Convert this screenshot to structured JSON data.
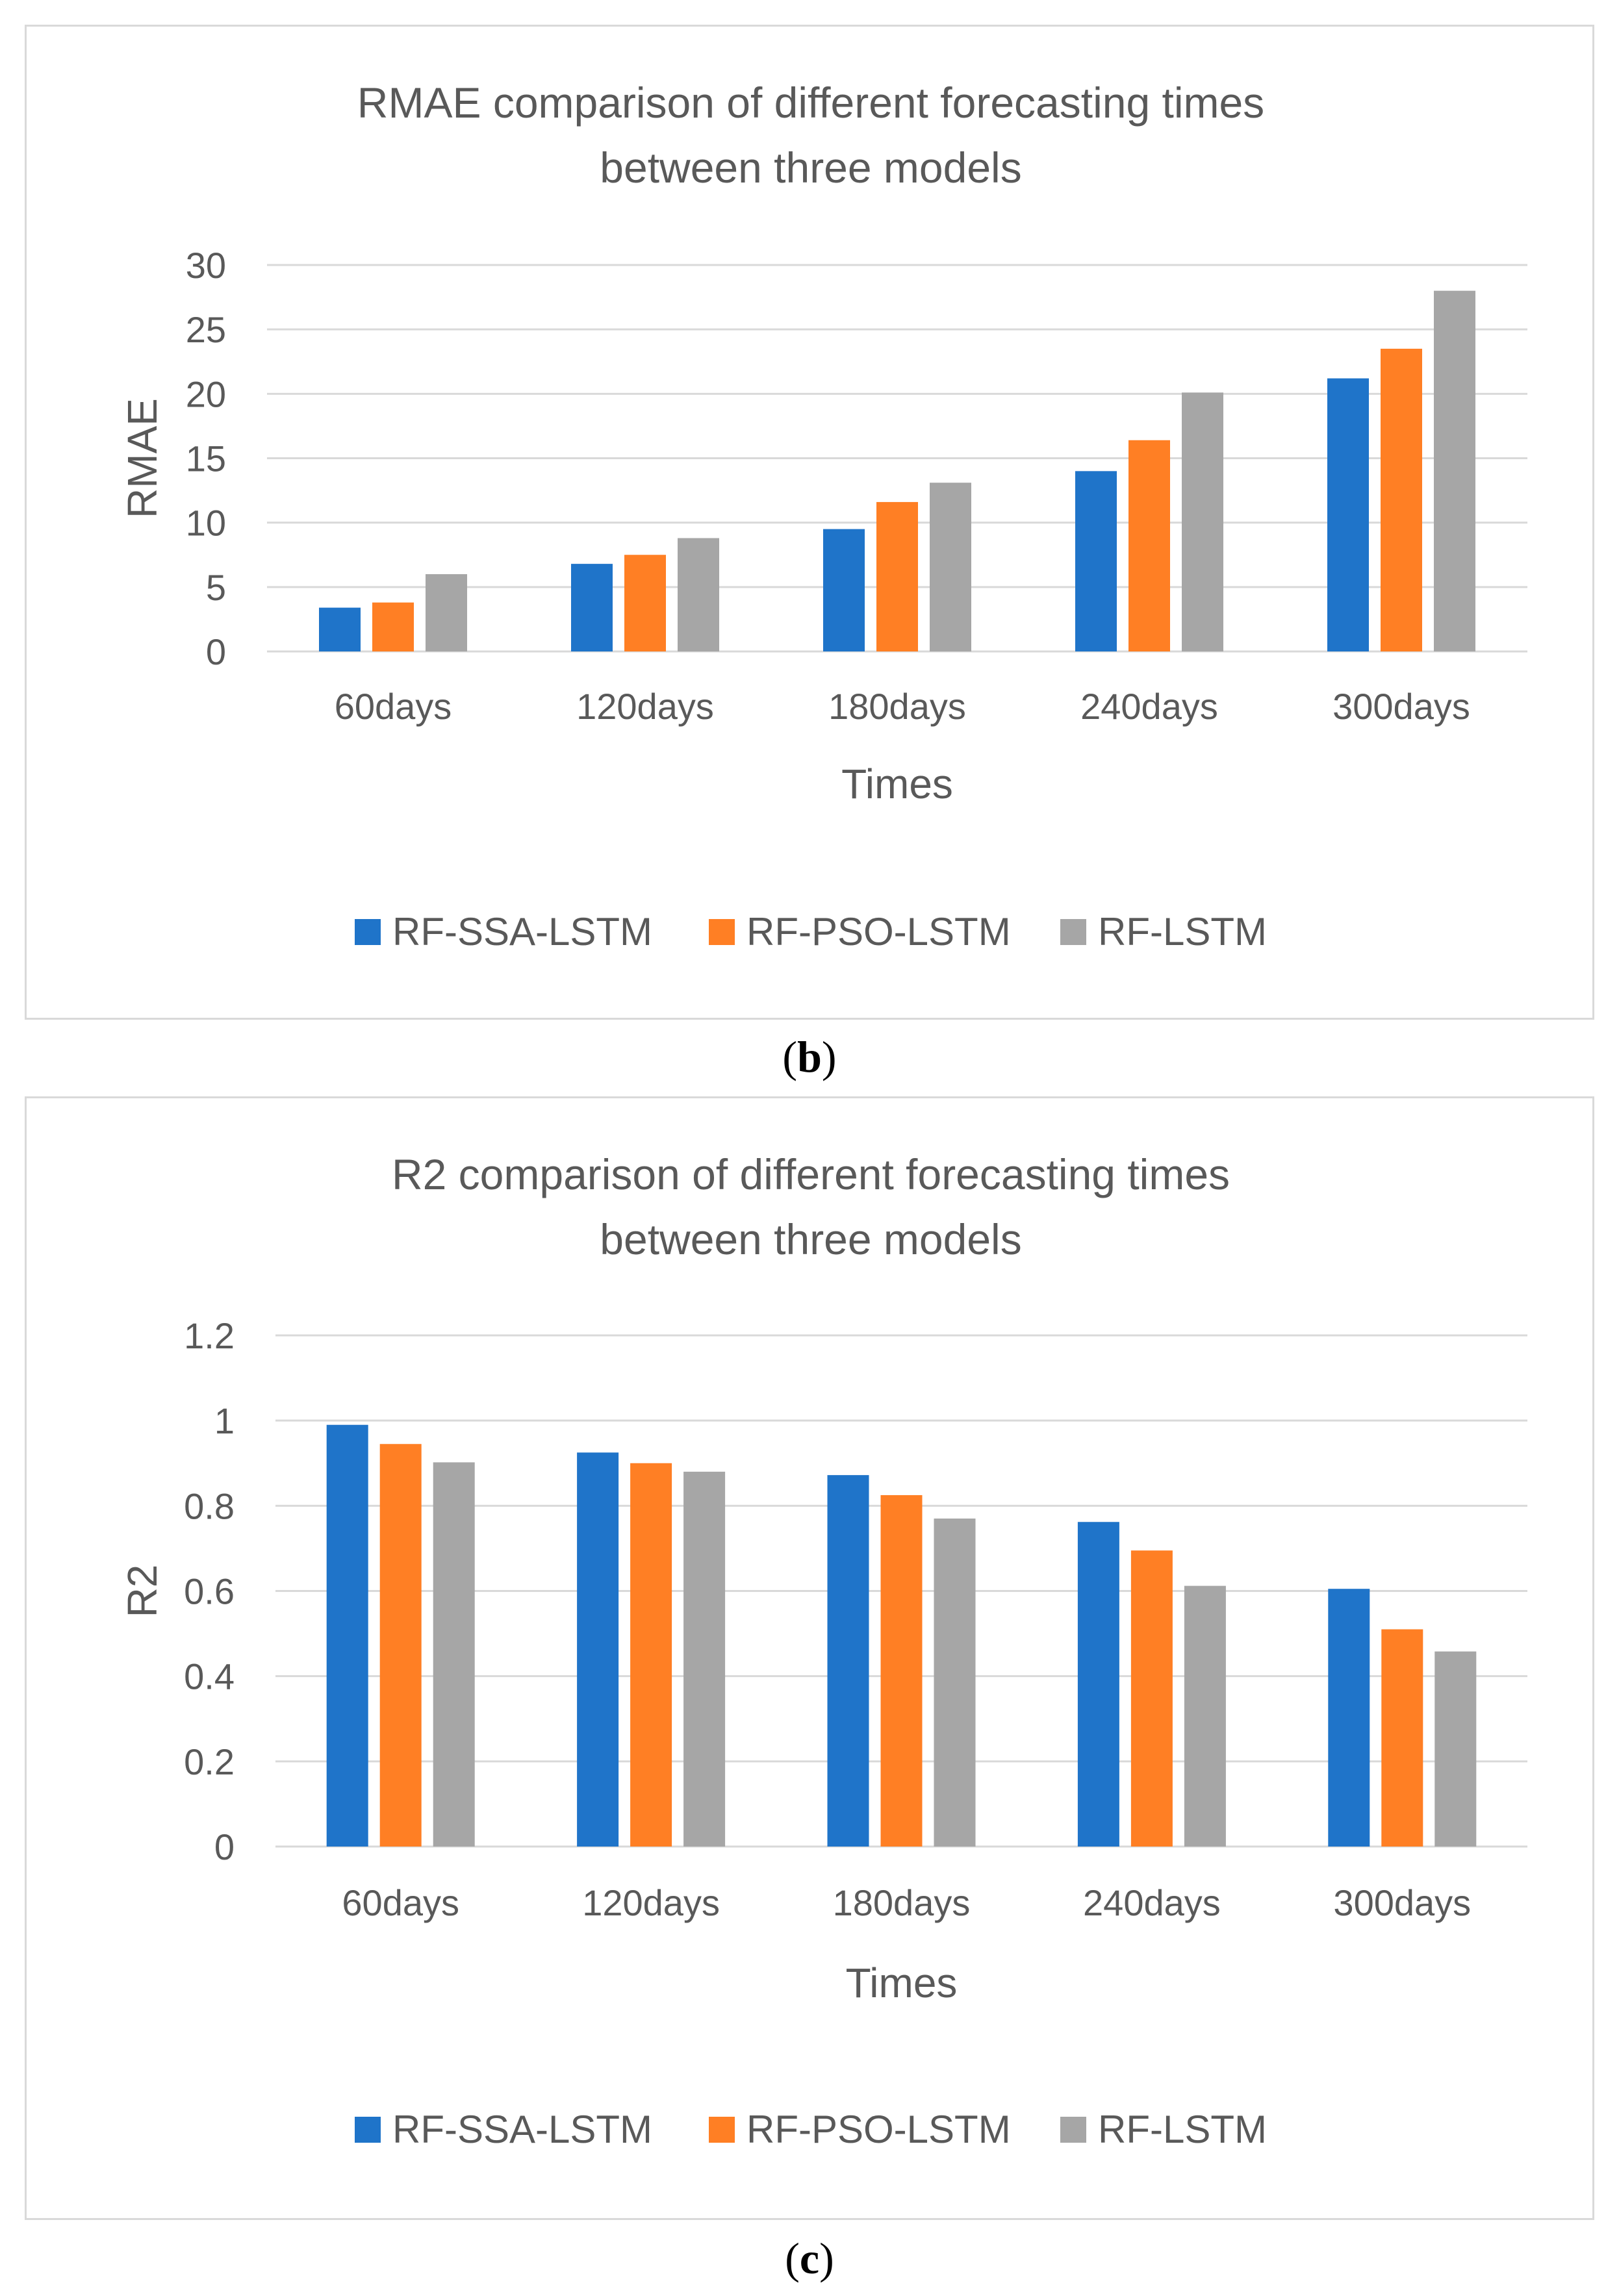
{
  "colors": {
    "series": [
      "#1f74c9",
      "#ff7f24",
      "#a6a6a6"
    ],
    "grid": "#d9d9d9",
    "text": "#595959"
  },
  "captions": {
    "b": "b",
    "c": "c"
  },
  "chart_data": [
    {
      "type": "bar",
      "title_lines": [
        "RMAE comparison of different forecasting times",
        "between three models"
      ],
      "xlabel": "Times",
      "ylabel": "RMAE",
      "categories": [
        "60days",
        "120days",
        "180days",
        "240days",
        "300days"
      ],
      "yticks": [
        "0",
        "5",
        "10",
        "15",
        "20",
        "25",
        "30"
      ],
      "ylim": [
        0,
        30
      ],
      "grid": true,
      "legend_position": "bottom",
      "series": [
        {
          "name": "RF-SSA-LSTM",
          "values": [
            3.4,
            6.8,
            9.5,
            14.0,
            21.2
          ]
        },
        {
          "name": "RF-PSO-LSTM",
          "values": [
            3.8,
            7.5,
            11.6,
            16.4,
            23.5
          ]
        },
        {
          "name": "RF-LSTM",
          "values": [
            6.0,
            8.8,
            13.1,
            20.1,
            28.0
          ]
        }
      ]
    },
    {
      "type": "bar",
      "title_lines": [
        "R2 comparison of different forecasting times",
        "between three models"
      ],
      "xlabel": "Times",
      "ylabel": "R2",
      "categories": [
        "60days",
        "120days",
        "180days",
        "240days",
        "300days"
      ],
      "yticks": [
        "0",
        "0.2",
        "0.4",
        "0.6",
        "0.8",
        "1",
        "1.2"
      ],
      "ylim": [
        0,
        1.2
      ],
      "grid": true,
      "legend_position": "bottom",
      "series": [
        {
          "name": "RF-SSA-LSTM",
          "values": [
            0.99,
            0.925,
            0.872,
            0.762,
            0.605
          ]
        },
        {
          "name": "RF-PSO-LSTM",
          "values": [
            0.945,
            0.9,
            0.825,
            0.695,
            0.51
          ]
        },
        {
          "name": "RF-LSTM",
          "values": [
            0.902,
            0.88,
            0.77,
            0.612,
            0.458
          ]
        }
      ]
    }
  ]
}
